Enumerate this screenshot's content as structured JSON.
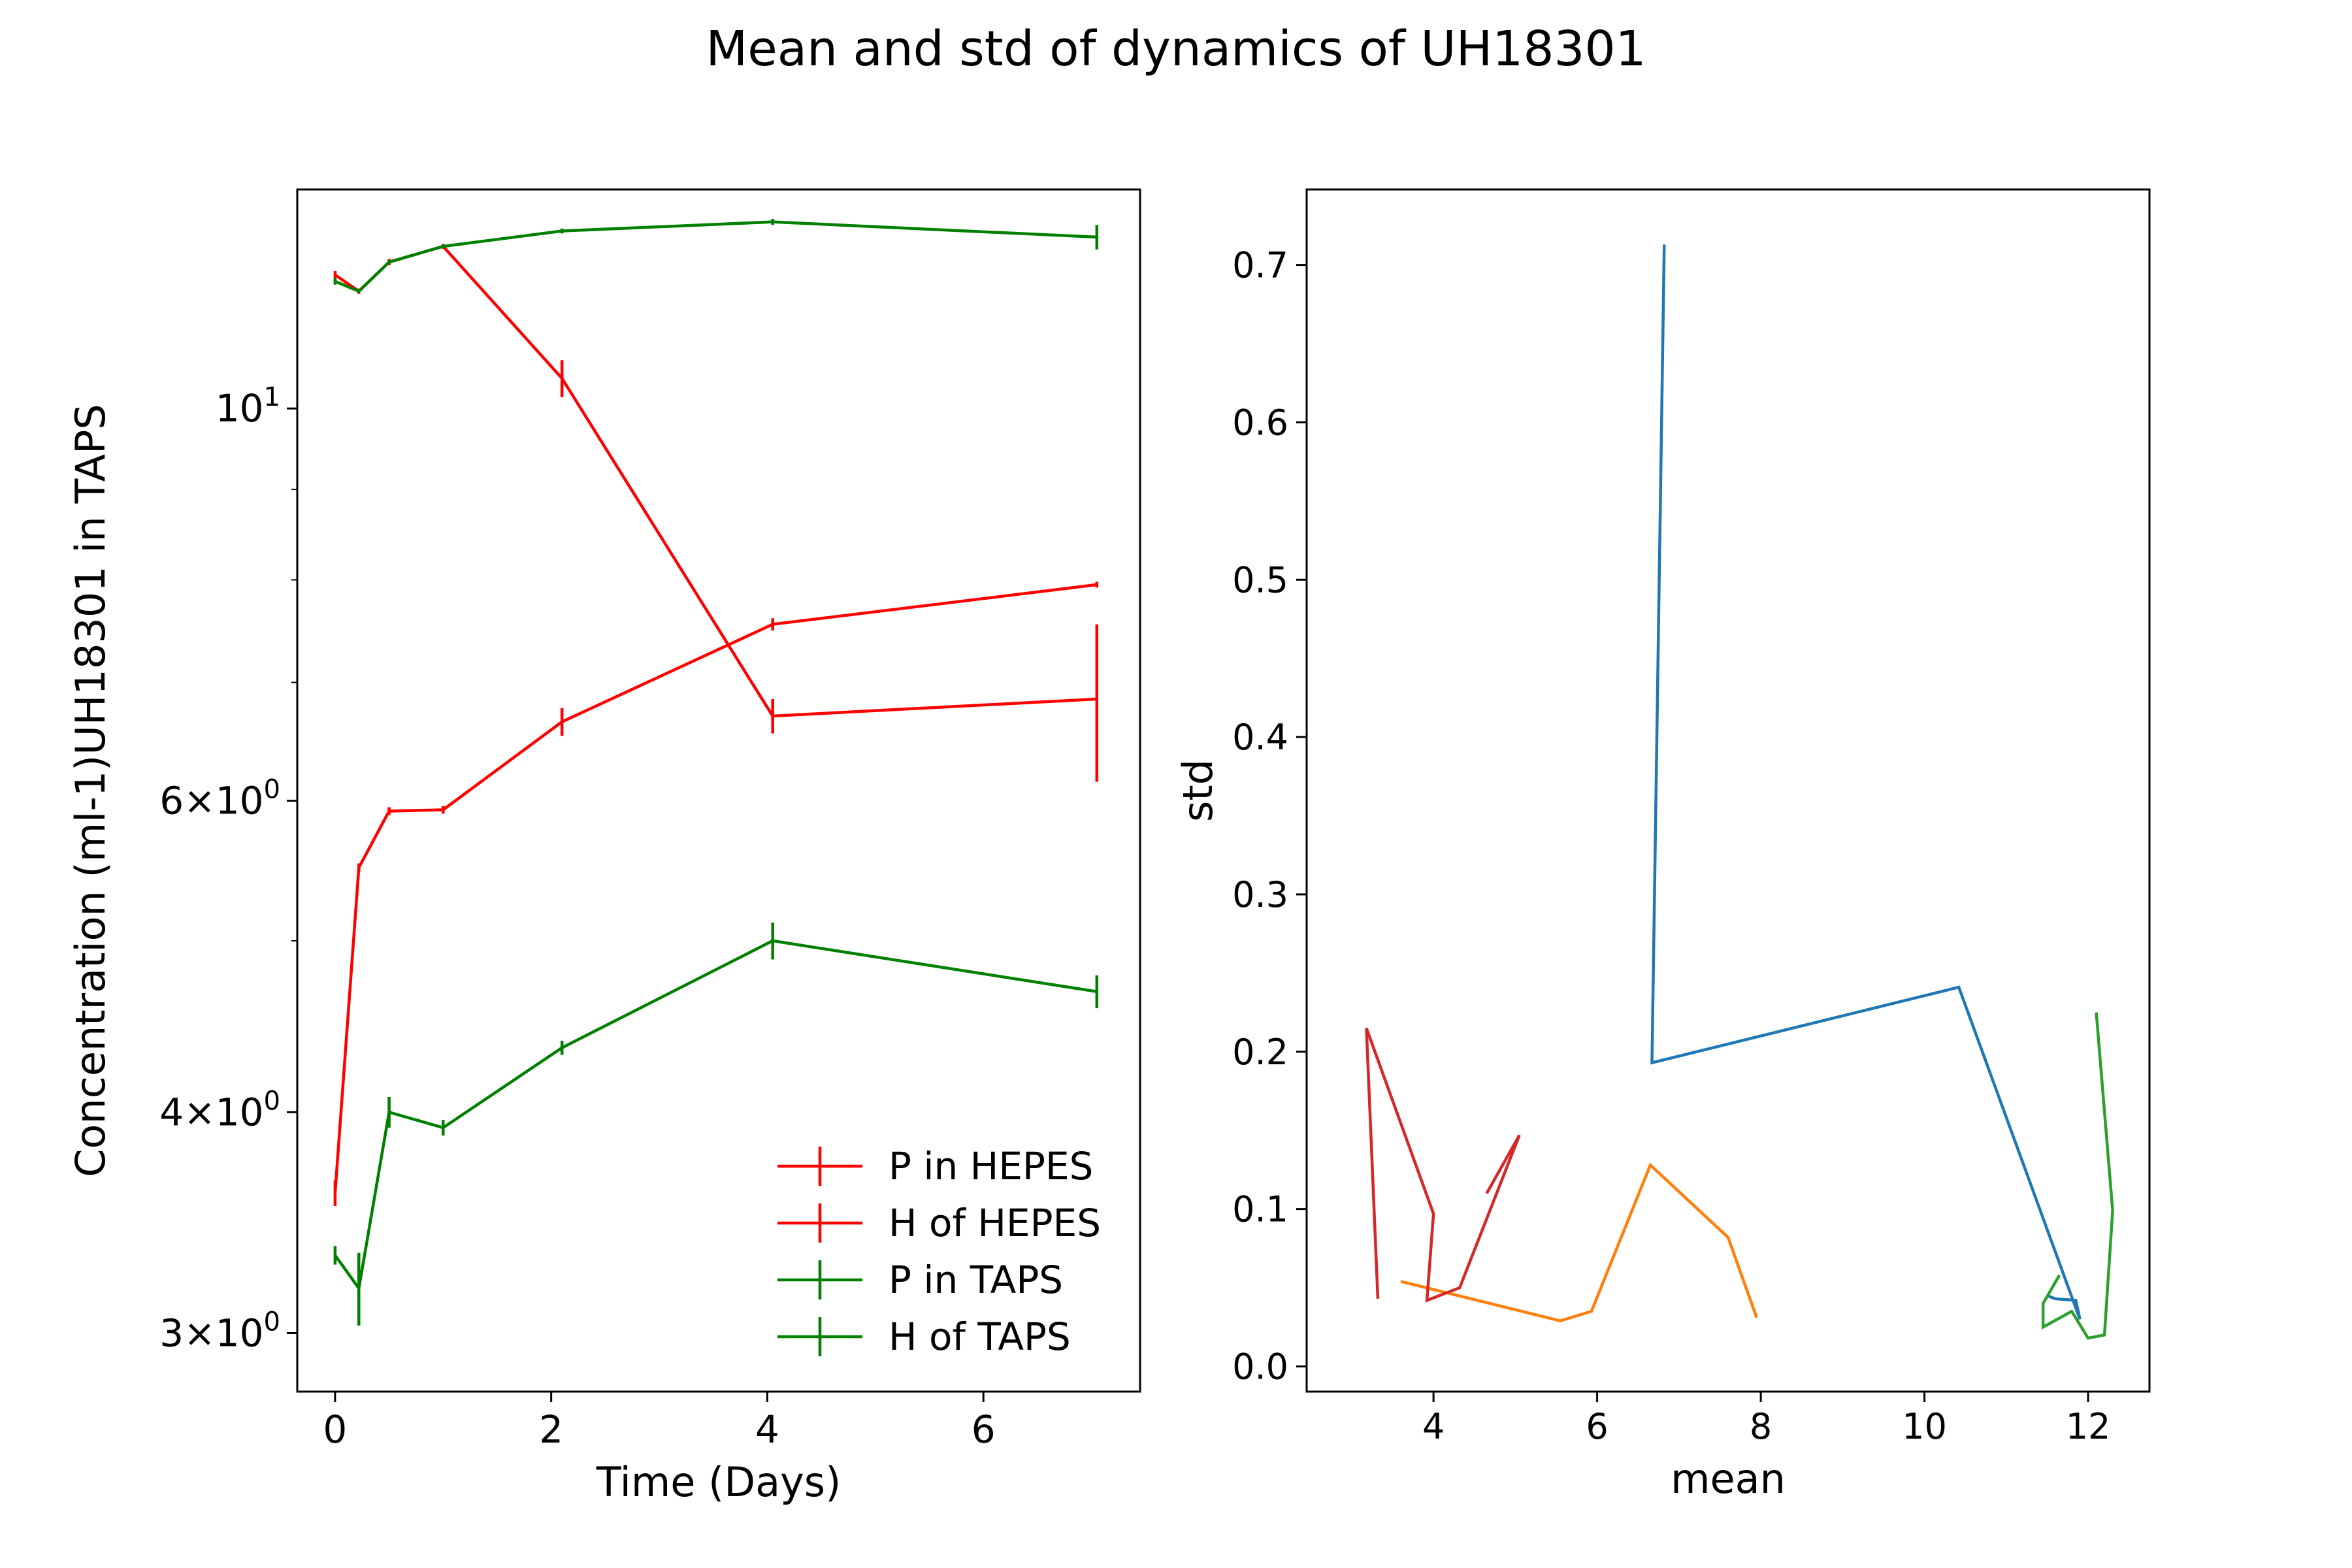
{
  "figure_title": "Mean and std of dynamics of UH18301",
  "chart_data": [
    {
      "type": "line",
      "subtype": "errorbar",
      "xlabel": "Time (Days)",
      "ylabel": "Concentration (ml-1)UH18301 in TAPS",
      "yscale": "log",
      "xlim": [
        -0.35,
        7.45
      ],
      "ylim": [
        2.78,
        13.3
      ],
      "xticks": [
        0,
        2,
        4,
        6
      ],
      "xtick_labels": [
        "0",
        "2",
        "4",
        "6"
      ],
      "yticks": [
        3,
        4,
        6,
        10
      ],
      "ytick_labels": [
        {
          "base": "3",
          "op": "×",
          "mant": "10",
          "exp": "0"
        },
        {
          "base": "4",
          "op": "×",
          "mant": "10",
          "exp": "0"
        },
        {
          "base": "6",
          "op": "×",
          "mant": "10",
          "exp": "0"
        },
        {
          "base": "",
          "op": "",
          "mant": "10",
          "exp": "1"
        }
      ],
      "legend_position": "lower-right",
      "x": [
        0,
        0.22,
        0.5,
        1.0,
        2.1,
        4.05,
        7.05
      ],
      "series": [
        {
          "name": "P in HEPES",
          "color": "#ff0000",
          "values": [
            3.6,
            5.5,
            5.92,
            5.93,
            6.65,
            7.55,
            7.95
          ],
          "err": [
            0.06,
            0.03,
            0.03,
            0.03,
            0.12,
            0.06,
            0.03
          ]
        },
        {
          "name": "H of HEPES",
          "color": "#ff0000",
          "values": [
            11.9,
            11.65,
            12.1,
            12.35,
            10.4,
            6.7,
            6.85
          ],
          "err": [
            0.06,
            0.04,
            0.05,
            0.04,
            0.25,
            0.15,
            0.7
          ]
        },
        {
          "name": "P in TAPS",
          "color": "#008000",
          "values": [
            3.32,
            3.18,
            4.0,
            3.92,
            4.35,
            5.0,
            4.68
          ],
          "err": [
            0.04,
            0.15,
            0.08,
            0.04,
            0.04,
            0.12,
            0.1
          ]
        },
        {
          "name": "H of TAPS",
          "color": "#008000",
          "values": [
            11.8,
            11.65,
            12.1,
            12.35,
            12.6,
            12.75,
            12.5
          ],
          "err": [
            0.05,
            0.03,
            0.03,
            0.03,
            0.04,
            0.05,
            0.2
          ]
        }
      ]
    },
    {
      "type": "line",
      "xlabel": "mean",
      "ylabel": "std",
      "xlim": [
        2.45,
        12.75
      ],
      "ylim": [
        -0.016,
        0.748
      ],
      "xticks": [
        4,
        6,
        8,
        10,
        12
      ],
      "yticks": [
        0.0,
        0.1,
        0.2,
        0.3,
        0.4,
        0.5,
        0.6,
        0.7
      ],
      "xtick_labels": [
        "4",
        "6",
        "8",
        "10",
        "12"
      ],
      "ytick_labels": [
        "0.0",
        "0.1",
        "0.2",
        "0.3",
        "0.4",
        "0.5",
        "0.6",
        "0.7"
      ],
      "series": [
        {
          "color": "#1f77b4",
          "points": [
            [
              6.82,
              0.713
            ],
            [
              6.67,
              0.193
            ],
            [
              10.42,
              0.241
            ],
            [
              11.9,
              0.03
            ],
            [
              11.85,
              0.042
            ],
            [
              11.6,
              0.043
            ],
            [
              11.5,
              0.045
            ]
          ]
        },
        {
          "color": "#ff7f0e",
          "points": [
            [
              3.6,
              0.054
            ],
            [
              5.55,
              0.029
            ],
            [
              5.93,
              0.035
            ],
            [
              6.65,
              0.128
            ],
            [
              7.6,
              0.082
            ],
            [
              7.95,
              0.031
            ]
          ]
        },
        {
          "color": "#2ca02c",
          "points": [
            [
              12.1,
              0.225
            ],
            [
              12.3,
              0.099
            ],
            [
              12.2,
              0.02
            ],
            [
              12.0,
              0.018
            ],
            [
              11.8,
              0.035
            ],
            [
              11.45,
              0.025
            ],
            [
              11.45,
              0.04
            ],
            [
              11.65,
              0.058
            ]
          ]
        },
        {
          "color": "#d62728",
          "points": [
            [
              3.32,
              0.043
            ],
            [
              3.18,
              0.215
            ],
            [
              4.0,
              0.097
            ],
            [
              3.92,
              0.042
            ],
            [
              4.32,
              0.05
            ],
            [
              5.05,
              0.147
            ],
            [
              4.65,
              0.11
            ]
          ]
        }
      ]
    }
  ]
}
